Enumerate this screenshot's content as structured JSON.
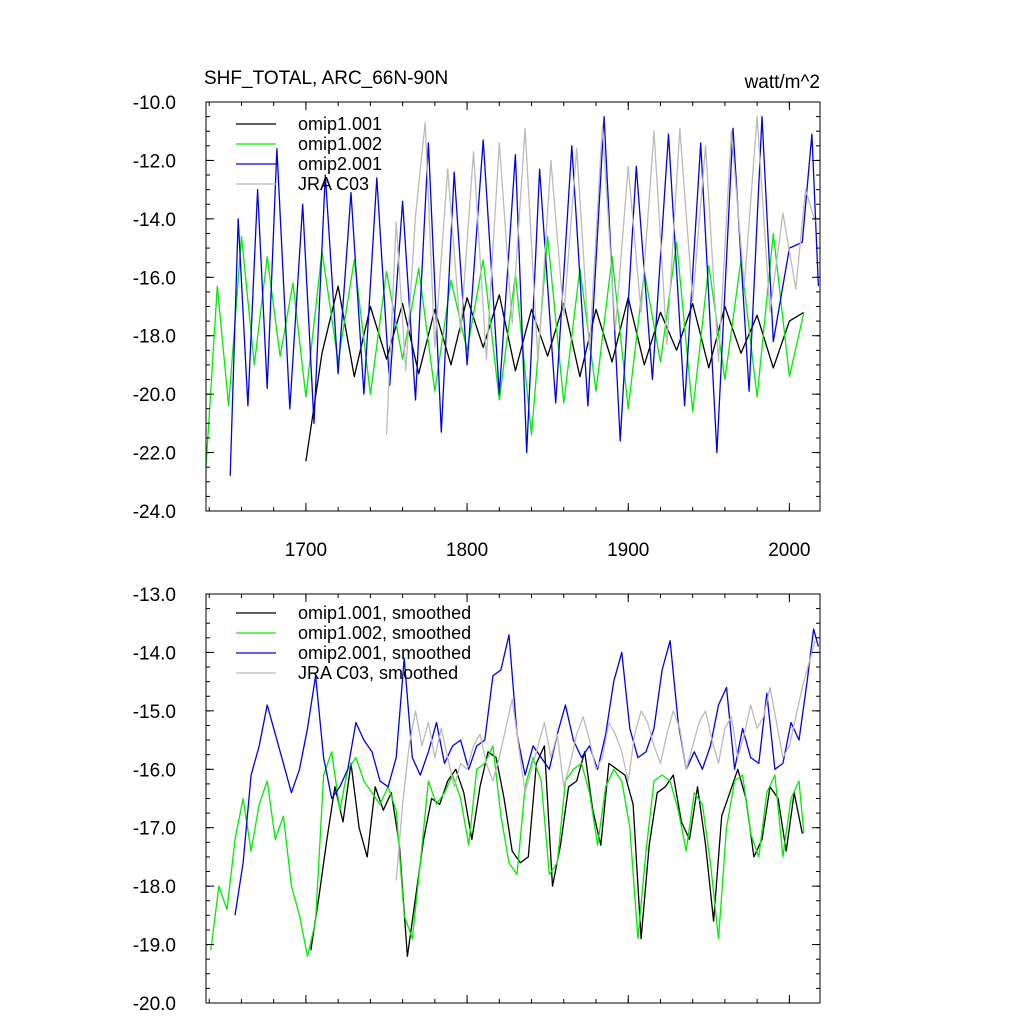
{
  "chart_data": [
    {
      "type": "line",
      "title": "SHF_TOTAL, ARC_66N-90N",
      "units": "watt/m^2",
      "xlabel": "",
      "ylabel": "",
      "xlim": [
        1638,
        2019
      ],
      "ylim": [
        -24.0,
        -10.0
      ],
      "x_ticks": [
        1700,
        1800,
        1900,
        2000
      ],
      "y_ticks": [
        -24.0,
        -22.0,
        -20.0,
        -18.0,
        -16.0,
        -14.0,
        -12.0,
        -10.0
      ],
      "y_tick_labels": [
        "-24.0",
        "-22.0",
        "-20.0",
        "-18.0",
        "-16.0",
        "-14.0",
        "-12.0",
        "-10.0"
      ],
      "x_tick_labels": [
        "1700",
        "1800",
        "1900",
        "2000"
      ],
      "grid": false,
      "legend_position": "top-left",
      "series": [
        {
          "name": "omip1.001",
          "color": "#000000",
          "x": [
            1700,
            1710,
            1720,
            1730,
            1740,
            1750,
            1760,
            1770,
            1780,
            1790,
            1800,
            1810,
            1820,
            1830,
            1840,
            1850,
            1860,
            1870,
            1880,
            1890,
            1900,
            1910,
            1920,
            1930,
            1940,
            1950,
            1960,
            1970,
            1980,
            1990,
            2000,
            2009
          ],
          "values": [
            -22.3,
            -18.6,
            -16.3,
            -19.4,
            -17.0,
            -18.8,
            -16.9,
            -19.3,
            -17.1,
            -19.0,
            -16.7,
            -18.4,
            -16.6,
            -19.2,
            -17.1,
            -18.7,
            -16.9,
            -19.4,
            -17.1,
            -18.9,
            -16.7,
            -19.0,
            -17.2,
            -18.5,
            -16.9,
            -19.1,
            -17.0,
            -18.6,
            -17.3,
            -19.1,
            -17.5,
            -17.2
          ]
        },
        {
          "name": "omip1.002",
          "color": "#00ee00",
          "x": [
            1638,
            1645,
            1652,
            1660,
            1668,
            1676,
            1684,
            1692,
            1700,
            1710,
            1720,
            1730,
            1740,
            1750,
            1760,
            1770,
            1780,
            1790,
            1800,
            1810,
            1820,
            1830,
            1840,
            1850,
            1860,
            1870,
            1880,
            1890,
            1900,
            1910,
            1920,
            1930,
            1940,
            1950,
            1960,
            1970,
            1980,
            1990,
            2000,
            2009
          ],
          "values": [
            -22.5,
            -16.3,
            -20.4,
            -14.6,
            -19.0,
            -15.3,
            -18.7,
            -16.2,
            -20.1,
            -15.1,
            -18.9,
            -15.4,
            -20.0,
            -15.8,
            -18.8,
            -15.7,
            -19.9,
            -16.1,
            -18.5,
            -15.4,
            -20.2,
            -15.9,
            -21.4,
            -14.6,
            -20.3,
            -15.7,
            -19.9,
            -15.3,
            -20.5,
            -15.8,
            -18.9,
            -14.8,
            -20.6,
            -15.6,
            -19.5,
            -15.4,
            -20.1,
            -14.5,
            -19.4,
            -17.2
          ]
        },
        {
          "name": "omip2.001",
          "color": "#0000ee",
          "x": [
            1653,
            1658,
            1664,
            1670,
            1676,
            1682,
            1690,
            1698,
            1705,
            1712,
            1720,
            1728,
            1736,
            1744,
            1752,
            1760,
            1768,
            1776,
            1784,
            1792,
            1800,
            1810,
            1820,
            1830,
            1837,
            1845,
            1855,
            1865,
            1875,
            1885,
            1895,
            1905,
            1915,
            1925,
            1935,
            1945,
            1955,
            1965,
            1975,
            1983,
            1990,
            2000,
            2008,
            2014,
            2018
          ],
          "values": [
            -22.8,
            -14.0,
            -20.4,
            -13.0,
            -19.8,
            -11.6,
            -20.5,
            -13.5,
            -21.0,
            -12.5,
            -19.3,
            -13.1,
            -20.0,
            -12.6,
            -19.7,
            -13.4,
            -20.2,
            -11.4,
            -21.3,
            -12.4,
            -19.0,
            -11.3,
            -20.0,
            -11.8,
            -22.0,
            -12.3,
            -20.3,
            -11.5,
            -20.4,
            -10.5,
            -21.6,
            -12.2,
            -19.5,
            -11.1,
            -20.4,
            -11.4,
            -22.0,
            -10.9,
            -19.9,
            -10.5,
            -18.2,
            -15.0,
            -14.8,
            -11.1,
            -16.3
          ]
        },
        {
          "name": "JRA C03",
          "color": "#bbbbbb",
          "x": [
            1750,
            1756,
            1762,
            1768,
            1774,
            1780,
            1788,
            1796,
            1804,
            1812,
            1820,
            1828,
            1836,
            1844,
            1852,
            1860,
            1868,
            1876,
            1884,
            1892,
            1900,
            1908,
            1916,
            1924,
            1932,
            1940,
            1948,
            1956,
            1964,
            1972,
            1980,
            1988,
            1996,
            2004,
            2010,
            2016
          ],
          "values": [
            -21.4,
            -14.1,
            -19.2,
            -13.9,
            -10.7,
            -18.4,
            -12.3,
            -17.9,
            -11.7,
            -18.8,
            -11.4,
            -17.6,
            -10.9,
            -18.9,
            -12.0,
            -17.3,
            -11.6,
            -18.5,
            -10.8,
            -17.8,
            -12.2,
            -17.2,
            -11.0,
            -18.3,
            -10.9,
            -16.8,
            -11.5,
            -18.9,
            -11.0,
            -16.3,
            -10.5,
            -17.2,
            -13.8,
            -16.4,
            -13.0,
            -14.1
          ]
        }
      ]
    },
    {
      "type": "line",
      "title": "",
      "xlabel": "",
      "ylabel": "",
      "xlim": [
        1638,
        2019
      ],
      "ylim": [
        -20.0,
        -13.0
      ],
      "x_ticks": [
        1700,
        1800,
        1900,
        2000
      ],
      "y_ticks": [
        -20.0,
        -19.0,
        -18.0,
        -17.0,
        -16.0,
        -15.0,
        -14.0,
        -13.0
      ],
      "y_tick_labels": [
        "-20.0",
        "-19.0",
        "-18.0",
        "-17.0",
        "-16.0",
        "-15.0",
        "-14.0",
        "-13.0"
      ],
      "grid": false,
      "legend_position": "top-left",
      "series": [
        {
          "name": "omip1.001, smoothed",
          "color": "#000000",
          "x": [
            1703,
            1708,
            1713,
            1718,
            1723,
            1728,
            1733,
            1738,
            1743,
            1748,
            1753,
            1758,
            1763,
            1768,
            1773,
            1778,
            1783,
            1788,
            1793,
            1798,
            1803,
            1808,
            1813,
            1818,
            1823,
            1828,
            1833,
            1838,
            1843,
            1848,
            1853,
            1858,
            1863,
            1868,
            1873,
            1878,
            1883,
            1888,
            1893,
            1898,
            1903,
            1908,
            1913,
            1918,
            1923,
            1928,
            1933,
            1938,
            1943,
            1948,
            1953,
            1958,
            1963,
            1968,
            1973,
            1978,
            1983,
            1988,
            1993,
            1998,
            2003,
            2008
          ],
          "values": [
            -19.1,
            -18.2,
            -17.2,
            -16.3,
            -16.9,
            -15.9,
            -17.0,
            -17.5,
            -16.3,
            -16.7,
            -16.4,
            -17.3,
            -19.2,
            -18.2,
            -17.2,
            -16.5,
            -16.6,
            -16.2,
            -16.0,
            -16.4,
            -17.2,
            -16.3,
            -15.7,
            -15.8,
            -16.5,
            -17.4,
            -17.6,
            -17.5,
            -15.9,
            -15.6,
            -18.0,
            -17.3,
            -16.3,
            -16.2,
            -15.7,
            -16.7,
            -17.3,
            -15.9,
            -16.0,
            -16.1,
            -16.6,
            -18.9,
            -17.3,
            -16.4,
            -16.3,
            -16.1,
            -16.9,
            -17.2,
            -16.3,
            -17.3,
            -18.6,
            -16.8,
            -16.4,
            -16.0,
            -16.5,
            -17.5,
            -17.2,
            -16.3,
            -16.5,
            -17.4,
            -16.4,
            -17.1
          ]
        },
        {
          "name": "omip1.002, smoothed",
          "color": "#00ee00",
          "x": [
            1641,
            1646,
            1651,
            1656,
            1661,
            1666,
            1671,
            1676,
            1681,
            1686,
            1691,
            1696,
            1701,
            1706,
            1711,
            1716,
            1721,
            1726,
            1731,
            1736,
            1741,
            1746,
            1751,
            1756,
            1761,
            1766,
            1771,
            1776,
            1781,
            1786,
            1791,
            1796,
            1801,
            1806,
            1811,
            1816,
            1821,
            1826,
            1831,
            1836,
            1841,
            1846,
            1851,
            1856,
            1861,
            1866,
            1871,
            1876,
            1881,
            1886,
            1891,
            1896,
            1901,
            1906,
            1911,
            1916,
            1921,
            1926,
            1931,
            1936,
            1941,
            1946,
            1951,
            1956,
            1961,
            1966,
            1971,
            1976,
            1981,
            1986,
            1991,
            1996,
            2001,
            2006,
            2009
          ],
          "values": [
            -19.1,
            -18.0,
            -18.4,
            -17.2,
            -16.5,
            -17.4,
            -16.6,
            -16.2,
            -17.2,
            -16.8,
            -18.0,
            -18.5,
            -19.2,
            -18.6,
            -16.1,
            -15.7,
            -16.7,
            -16.0,
            -15.8,
            -16.2,
            -16.4,
            -16.6,
            -16.3,
            -16.7,
            -18.5,
            -18.9,
            -17.6,
            -16.2,
            -16.6,
            -16.4,
            -16.1,
            -16.5,
            -17.3,
            -16.0,
            -15.9,
            -15.6,
            -16.8,
            -17.6,
            -17.8,
            -16.3,
            -15.8,
            -16.2,
            -17.8,
            -17.6,
            -16.2,
            -16.0,
            -15.9,
            -16.4,
            -17.3,
            -16.3,
            -16.0,
            -16.2,
            -17.0,
            -18.9,
            -17.4,
            -16.2,
            -16.1,
            -16.2,
            -16.7,
            -17.4,
            -16.4,
            -16.6,
            -17.6,
            -18.9,
            -17.0,
            -16.2,
            -16.1,
            -17.1,
            -17.5,
            -16.4,
            -16.1,
            -17.5,
            -16.5,
            -16.2,
            -17.1
          ]
        },
        {
          "name": "omip2.001, smoothed",
          "color": "#0000ee",
          "x": [
            1656,
            1661,
            1666,
            1671,
            1676,
            1681,
            1686,
            1691,
            1696,
            1701,
            1706,
            1711,
            1716,
            1721,
            1726,
            1731,
            1736,
            1741,
            1746,
            1751,
            1756,
            1761,
            1766,
            1771,
            1776,
            1781,
            1786,
            1791,
            1796,
            1801,
            1806,
            1811,
            1816,
            1821,
            1826,
            1831,
            1836,
            1841,
            1846,
            1851,
            1856,
            1861,
            1866,
            1871,
            1876,
            1881,
            1886,
            1891,
            1896,
            1901,
            1906,
            1911,
            1916,
            1921,
            1926,
            1931,
            1936,
            1941,
            1946,
            1951,
            1956,
            1961,
            1966,
            1971,
            1976,
            1981,
            1986,
            1991,
            1996,
            2001,
            2006,
            2011,
            2015,
            2018
          ],
          "values": [
            -18.5,
            -17.6,
            -16.1,
            -15.6,
            -14.9,
            -15.4,
            -15.9,
            -16.4,
            -16.0,
            -15.3,
            -14.4,
            -15.8,
            -16.5,
            -16.3,
            -16.0,
            -15.2,
            -15.5,
            -15.7,
            -16.2,
            -16.3,
            -15.8,
            -14.1,
            -15.8,
            -16.1,
            -15.7,
            -15.2,
            -15.9,
            -15.6,
            -15.5,
            -16.0,
            -15.6,
            -15.5,
            -14.4,
            -14.3,
            -13.7,
            -15.4,
            -16.1,
            -15.6,
            -15.8,
            -16.0,
            -15.4,
            -14.9,
            -15.5,
            -15.8,
            -15.6,
            -16.0,
            -15.4,
            -14.5,
            -14.0,
            -15.3,
            -15.8,
            -15.7,
            -15.3,
            -14.3,
            -13.8,
            -15.2,
            -16.0,
            -15.7,
            -16.0,
            -15.6,
            -14.9,
            -14.6,
            -16.0,
            -15.3,
            -15.8,
            -15.9,
            -14.7,
            -16.0,
            -15.9,
            -15.2,
            -15.5,
            -14.5,
            -13.6,
            -13.9
          ]
        },
        {
          "name": "JRA C03, smoothed",
          "color": "#bbbbbb",
          "x": [
            1756,
            1760,
            1764,
            1768,
            1772,
            1776,
            1780,
            1784,
            1788,
            1792,
            1796,
            1800,
            1804,
            1808,
            1812,
            1816,
            1820,
            1824,
            1828,
            1832,
            1836,
            1840,
            1844,
            1848,
            1852,
            1856,
            1860,
            1864,
            1868,
            1872,
            1876,
            1880,
            1884,
            1888,
            1892,
            1896,
            1900,
            1904,
            1908,
            1912,
            1916,
            1920,
            1924,
            1928,
            1932,
            1936,
            1940,
            1944,
            1948,
            1952,
            1956,
            1960,
            1964,
            1968,
            1972,
            1976,
            1980,
            1984,
            1988,
            1992,
            1996,
            2000,
            2004,
            2008,
            2012,
            2016
          ],
          "values": [
            -17.9,
            -16.6,
            -15.6,
            -15.0,
            -15.6,
            -15.2,
            -15.8,
            -15.3,
            -15.8,
            -16.3,
            -15.9,
            -16.0,
            -15.6,
            -15.4,
            -15.9,
            -16.2,
            -15.8,
            -15.3,
            -14.8,
            -15.6,
            -16.4,
            -16.0,
            -15.6,
            -15.2,
            -15.8,
            -15.4,
            -16.3,
            -15.9,
            -15.4,
            -15.1,
            -15.5,
            -16.0,
            -15.8,
            -15.2,
            -15.4,
            -15.7,
            -16.2,
            -15.4,
            -15.0,
            -15.2,
            -15.6,
            -15.9,
            -15.4,
            -15.0,
            -15.3,
            -16.0,
            -15.6,
            -15.2,
            -15.0,
            -15.5,
            -15.9,
            -15.3,
            -15.1,
            -15.8,
            -15.4,
            -14.9,
            -15.3,
            -15.1,
            -14.6,
            -15.2,
            -15.8,
            -15.6,
            -15.1,
            -14.6,
            -14.2,
            -13.8
          ]
        }
      ]
    }
  ]
}
